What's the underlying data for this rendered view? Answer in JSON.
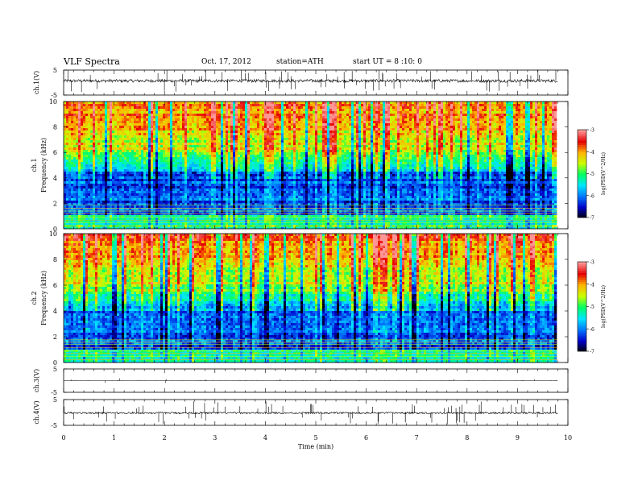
{
  "header": {
    "title": "VLF  Spectra",
    "date": "Oct. 17, 2012",
    "station": "station=ATH",
    "start": "start  UT =   8  :10: 0"
  },
  "chart_data": {
    "type": "heatmap",
    "title": "VLF  Spectra",
    "xlabel": "Time  (min)",
    "xlim": [
      0,
      10
    ],
    "xticks": [
      "0",
      "1",
      "2",
      "3",
      "4",
      "5",
      "6",
      "7",
      "8",
      "9",
      "10"
    ],
    "data_end_min": 9.8,
    "panels": [
      {
        "id": "ch1-waveform",
        "kind": "waveform",
        "ylabel": "ch.1(V)",
        "ylim": [
          -5,
          5
        ],
        "yticks": [
          "5",
          "-5"
        ],
        "baseline": 0.7,
        "noise": 0.6
      },
      {
        "id": "ch1-spectrogram",
        "kind": "spectrogram",
        "ylabel_top": "ch.1",
        "ylabel": "Frequency  (kHz)",
        "ylim": [
          0,
          10
        ],
        "yticks": [
          "0",
          "2",
          "4",
          "6",
          "8",
          "10"
        ],
        "colorbar": {
          "label": "log(PSD(V^2/Hz)",
          "range": [
            -7,
            -3
          ],
          "ticks": [
            "-3",
            "-4",
            "-5",
            "-6",
            "-7"
          ]
        }
      },
      {
        "id": "ch2-spectrogram",
        "kind": "spectrogram",
        "ylabel_top": "ch.2",
        "ylabel": "Frequency  (kHz)",
        "ylim": [
          0,
          10
        ],
        "yticks": [
          "0",
          "2",
          "4",
          "6",
          "8",
          "10"
        ],
        "colorbar": {
          "label": "log(PSD(V^2/Hz)",
          "range": [
            -7,
            -3
          ],
          "ticks": [
            "-3",
            "-4",
            "-5",
            "-6",
            "-7"
          ]
        }
      },
      {
        "id": "ch3-waveform",
        "kind": "waveform",
        "ylabel": "ch.3(V)",
        "ylim": [
          -5,
          5
        ],
        "yticks": [
          "5",
          "-5"
        ],
        "baseline": 0.0,
        "noise": 0.02
      },
      {
        "id": "ch4-waveform",
        "kind": "waveform",
        "ylabel": "ch.4(V)",
        "ylim": [
          -5,
          5
        ],
        "yticks": [
          "5",
          "-5"
        ],
        "baseline": -0.2,
        "noise": 0.35
      }
    ],
    "colormap": [
      "#000000",
      "#0000c8",
      "#0078ff",
      "#00e6ff",
      "#00ff64",
      "#c8ff00",
      "#ffb400",
      "#e60000",
      "#ff9696"
    ]
  }
}
